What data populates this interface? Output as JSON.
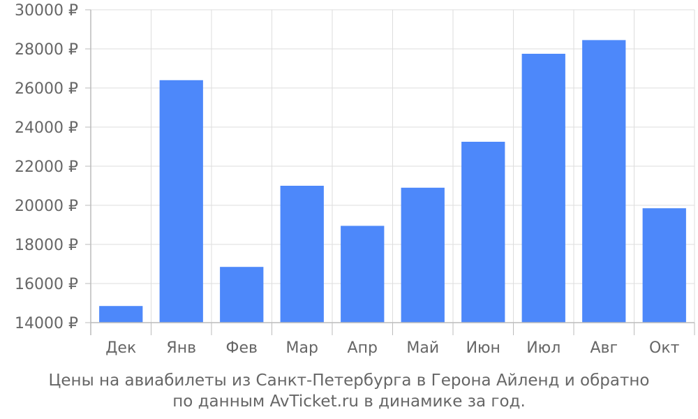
{
  "chart_data": {
    "type": "bar",
    "categories": [
      "Дек",
      "Янв",
      "Фев",
      "Мар",
      "Апр",
      "Май",
      "Июн",
      "Июл",
      "Авг",
      "Окт"
    ],
    "values": [
      14850,
      26400,
      16850,
      21000,
      18950,
      20900,
      23250,
      27750,
      28450,
      19850
    ],
    "ylim": [
      14000,
      30000
    ],
    "yticks": [
      14000,
      16000,
      18000,
      20000,
      22000,
      24000,
      26000,
      28000,
      30000
    ],
    "ytick_suffix": " ₽",
    "grid": true,
    "bar_color": "#4d88fa",
    "grid_color": "#dddddd",
    "axis_color": "#bbbbbb",
    "text_color": "#666666"
  },
  "caption": {
    "line1": "Цены на авиабилеты из Санкт-Петербурга в Герона Айленд и обратно",
    "line2": "по данным AvTicket.ru в динамике за год."
  }
}
